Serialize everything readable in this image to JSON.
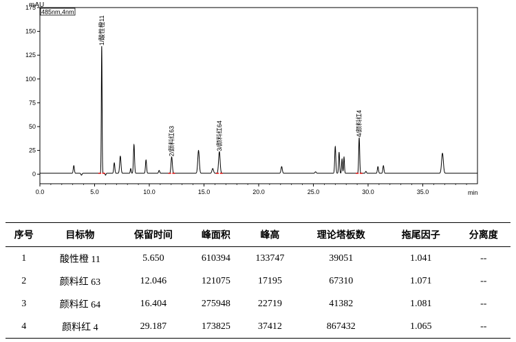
{
  "chart_data": {
    "type": "line",
    "y_unit_label": "mAU",
    "channel_label": "485nm,4nm",
    "x_unit_label": "min",
    "xlim": [
      0,
      40
    ],
    "ylim": [
      -10,
      175
    ],
    "x_ticks": [
      "0.0",
      "5.0",
      "10.0",
      "15.0",
      "20.0",
      "25.0",
      "30.0",
      "35.0"
    ],
    "y_ticks": [
      "175",
      "150",
      "125",
      "100",
      "75",
      "50",
      "25",
      "0"
    ],
    "y_tick_values": [
      175,
      150,
      125,
      100,
      75,
      50,
      25,
      0
    ],
    "x_tick_values": [
      0,
      5,
      10,
      15,
      20,
      25,
      30,
      35
    ],
    "baseline": 1.0,
    "peaks": [
      {
        "t": 3.1,
        "h": 8,
        "w": 0.05
      },
      {
        "t": 3.8,
        "h": -2,
        "w": 0.05
      },
      {
        "t": 5.65,
        "h": 133.7,
        "w": 0.035
      },
      {
        "t": 6.0,
        "h": -2,
        "w": 0.04
      },
      {
        "t": 6.8,
        "h": 11,
        "w": 0.05
      },
      {
        "t": 7.35,
        "h": 18,
        "w": 0.06
      },
      {
        "t": 8.3,
        "h": 5,
        "w": 0.04
      },
      {
        "t": 8.6,
        "h": 30,
        "w": 0.05
      },
      {
        "t": 9.7,
        "h": 14,
        "w": 0.05
      },
      {
        "t": 10.9,
        "h": 3,
        "w": 0.05
      },
      {
        "t": 12.046,
        "h": 17.2,
        "w": 0.06
      },
      {
        "t": 14.5,
        "h": 24,
        "w": 0.07
      },
      {
        "t": 15.8,
        "h": 5,
        "w": 0.07
      },
      {
        "t": 16.404,
        "h": 22.7,
        "w": 0.07
      },
      {
        "t": 22.1,
        "h": 7,
        "w": 0.06
      },
      {
        "t": 25.2,
        "h": 1.5,
        "w": 0.06
      },
      {
        "t": 27.0,
        "h": 28,
        "w": 0.05
      },
      {
        "t": 27.35,
        "h": 22,
        "w": 0.045
      },
      {
        "t": 27.62,
        "h": 15,
        "w": 0.04
      },
      {
        "t": 27.8,
        "h": 17,
        "w": 0.04
      },
      {
        "t": 29.187,
        "h": 37.4,
        "w": 0.045
      },
      {
        "t": 29.8,
        "h": 2,
        "w": 0.05
      },
      {
        "t": 30.9,
        "h": 7,
        "w": 0.05
      },
      {
        "t": 31.4,
        "h": 8,
        "w": 0.05
      },
      {
        "t": 36.8,
        "h": 21,
        "w": 0.08
      }
    ],
    "annotations": [
      {
        "label": "1/酸性橙11",
        "t": 5.65,
        "h": 133.7
      },
      {
        "label": "2/颜料红63",
        "t": 12.046,
        "h": 17.2
      },
      {
        "label": "3/颜料红64",
        "t": 16.404,
        "h": 22.7
      },
      {
        "label": "4/颜料红4",
        "t": 29.187,
        "h": 37.4
      }
    ]
  },
  "table": {
    "headers": [
      "序号",
      "目标物",
      "保留时间",
      "峰面积",
      "峰高",
      "理论塔板数",
      "拖尾因子",
      "分离度"
    ],
    "rows": [
      [
        "1",
        "酸性橙 11",
        "5.650",
        "610394",
        "133747",
        "39051",
        "1.041",
        "--"
      ],
      [
        "2",
        "颜料红 63",
        "12.046",
        "121075",
        "17195",
        "67310",
        "1.071",
        "--"
      ],
      [
        "3",
        "颜料红 64",
        "16.404",
        "275948",
        "22719",
        "41382",
        "1.081",
        "--"
      ],
      [
        "4",
        "颜料红 4",
        "29.187",
        "173825",
        "37412",
        "867432",
        "1.065",
        "--"
      ]
    ]
  }
}
